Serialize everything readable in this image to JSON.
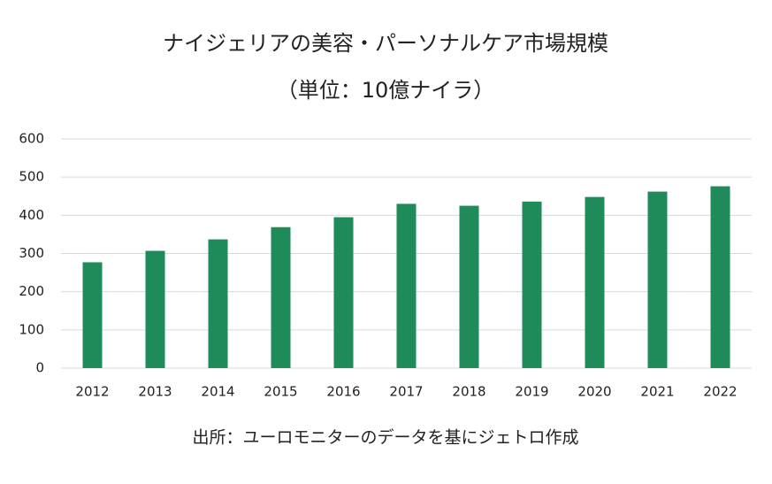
{
  "chart_data": {
    "type": "bar",
    "title": "ナイジェリアの美容・パーソナルケア市場規模",
    "subtitle": "（単位：10億ナイラ）",
    "categories": [
      "2012",
      "2013",
      "2014",
      "2015",
      "2016",
      "2017",
      "2018",
      "2019",
      "2020",
      "2021",
      "2022"
    ],
    "values": [
      277,
      307,
      337,
      369,
      395,
      430,
      425,
      436,
      448,
      462,
      476
    ],
    "color": "#1f8a5a",
    "ylim": [
      0,
      600
    ],
    "yticks": [
      0,
      100,
      200,
      300,
      400,
      500,
      600
    ],
    "grid": true,
    "source": "出所：ユーロモニターのデータを基にジェトロ作成"
  }
}
